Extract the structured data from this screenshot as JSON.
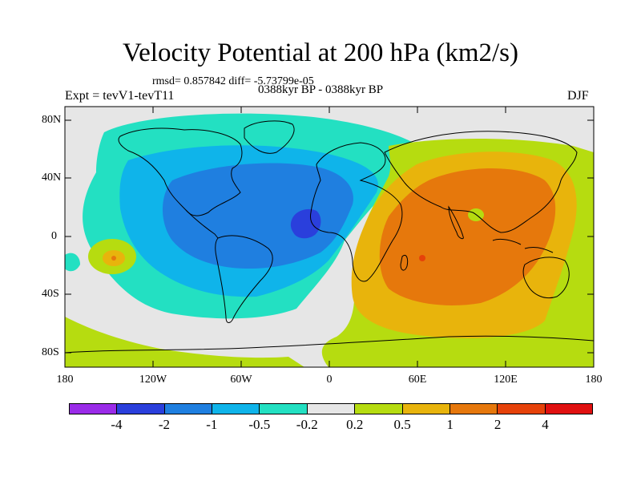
{
  "title": "Velocity Potential at 200 hPa (km2/s)",
  "stats": "rmsd= 0.857842 diff= -5.73799e-05",
  "expt": "Expt = tevV1-tevT11",
  "period": "0388kyr BP - 0388kyr BP",
  "season": "DJF",
  "chart_data": {
    "type": "filled-contour-map",
    "title": "Velocity Potential at 200 hPa (km2/s)",
    "lat_ticks": [
      "80N",
      "40N",
      "0",
      "40S",
      "80S"
    ],
    "lon_ticks": [
      "180",
      "120W",
      "60W",
      "0",
      "60E",
      "120E",
      "180"
    ],
    "lon_range": [
      -180,
      180
    ],
    "lat_range": [
      -90,
      90
    ],
    "colorbar": {
      "levels": [
        "-4",
        "-2",
        "-1",
        "-0.5",
        "-0.2",
        "0.2",
        "0.5",
        "1",
        "2",
        "4"
      ],
      "colors": [
        "#9a2be8",
        "#2a3fdc",
        "#1f7fe0",
        "#0fb4ea",
        "#23e0c2",
        "#e6e6e6",
        "#b6dc10",
        "#e8b40c",
        "#e6780c",
        "#e6420a",
        "#e01010"
      ]
    },
    "features": [
      {
        "name": "strong negative (convergence aloft) over tropical Atlantic / west Africa",
        "center_lon": -13,
        "center_lat": 7,
        "min_level": "-2"
      },
      {
        "name": "broad negative region over the Americas and Atlantic",
        "level": "-1"
      },
      {
        "name": "strong positive over Indian Ocean / Maritime Continent",
        "center_lon": 60,
        "center_lat": -15,
        "max_level": "2"
      },
      {
        "name": "weak positive over southern oceans",
        "level": "0.2"
      },
      {
        "name": "small positive cell in central Pacific",
        "center_lon": -140,
        "center_lat": -15,
        "level": "0.5"
      }
    ]
  }
}
